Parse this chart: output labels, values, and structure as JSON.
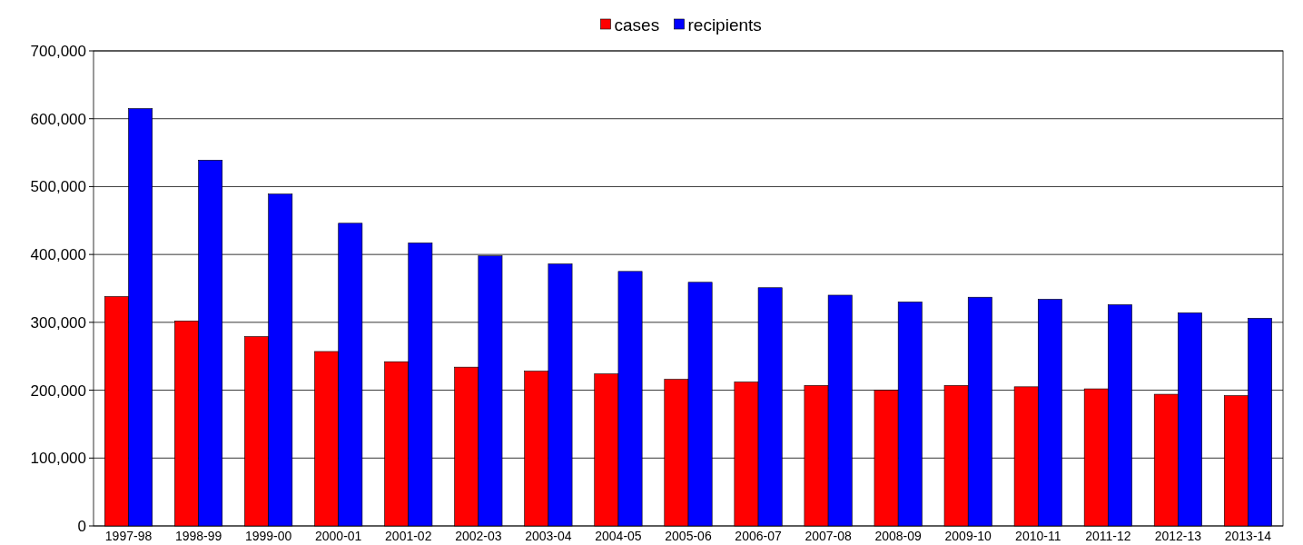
{
  "chart_data": {
    "type": "bar",
    "categories": [
      "1997-98",
      "1998-99",
      "1999-00",
      "2000-01",
      "2001-02",
      "2002-03",
      "2003-04",
      "2004-05",
      "2005-06",
      "2006-07",
      "2007-08",
      "2008-09",
      "2009-10",
      "2010-11",
      "2011-12",
      "2012-13",
      "2013-14"
    ],
    "series": [
      {
        "name": "cases",
        "color": "#ff0000",
        "values": [
          338000,
          302000,
          279000,
          257000,
          242000,
          234000,
          228000,
          224000,
          216000,
          212000,
          207000,
          200000,
          207000,
          205000,
          202000,
          194000,
          192000
        ]
      },
      {
        "name": "recipients",
        "color": "#0000ff",
        "values": [
          615000,
          539000,
          489000,
          446000,
          417000,
          398000,
          386000,
          375000,
          359000,
          351000,
          340000,
          330000,
          337000,
          334000,
          326000,
          314000,
          306000
        ]
      }
    ],
    "ylim": [
      0,
      700000
    ],
    "yticks": [
      {
        "value": 0,
        "label": "0"
      },
      {
        "value": 100000,
        "label": "100,000"
      },
      {
        "value": 200000,
        "label": "200,000"
      },
      {
        "value": 300000,
        "label": "300,000"
      },
      {
        "value": 400000,
        "label": "400,000"
      },
      {
        "value": 500000,
        "label": "500,000"
      },
      {
        "value": 600000,
        "label": "600,000"
      },
      {
        "value": 700000,
        "label": "700,000"
      }
    ],
    "grid": "y",
    "legend": "top"
  }
}
